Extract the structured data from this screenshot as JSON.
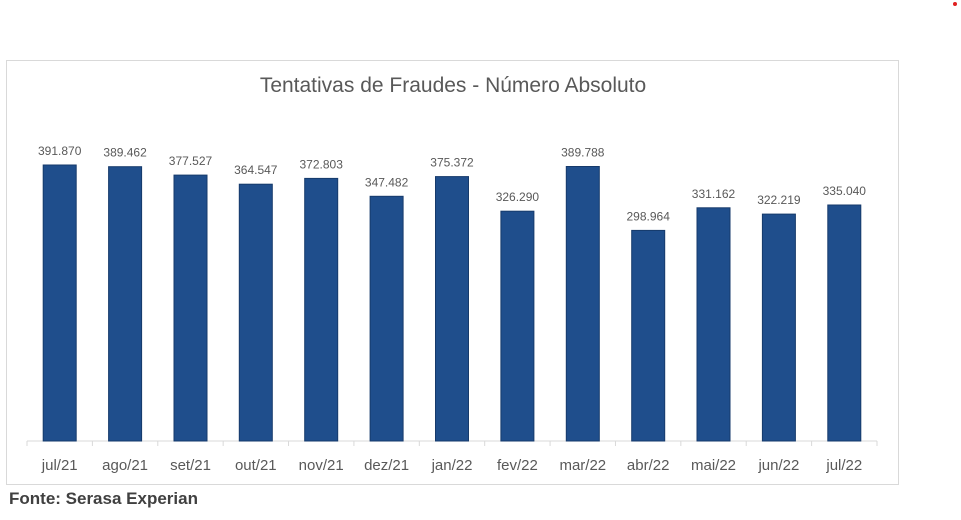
{
  "source_note": "Fonte: Serasa Experian",
  "colors": {
    "bar": "#1f4e8c",
    "bar_edge": "#163a6b",
    "axis": "#d9d9d9",
    "label": "#595959",
    "corner_dot": "#e02020"
  },
  "chart_data": {
    "type": "bar",
    "title": "Tentativas de Fraudes - Número Absoluto",
    "xlabel": "",
    "ylabel": "",
    "ylim": [
      0,
      400000
    ],
    "grid": false,
    "legend": "none",
    "categories": [
      "jul/21",
      "ago/21",
      "set/21",
      "out/21",
      "nov/21",
      "dez/21",
      "jan/22",
      "fev/22",
      "mar/22",
      "abr/22",
      "mai/22",
      "jun/22",
      "jul/22"
    ],
    "values": [
      391870,
      389462,
      377527,
      364547,
      372803,
      347482,
      375372,
      326290,
      389788,
      298964,
      331162,
      322219,
      335040
    ],
    "data_labels": [
      "391.870",
      "389.462",
      "377.527",
      "364.547",
      "372.803",
      "347.482",
      "375.372",
      "326.290",
      "389.788",
      "298.964",
      "331.162",
      "322.219",
      "335.040"
    ]
  }
}
